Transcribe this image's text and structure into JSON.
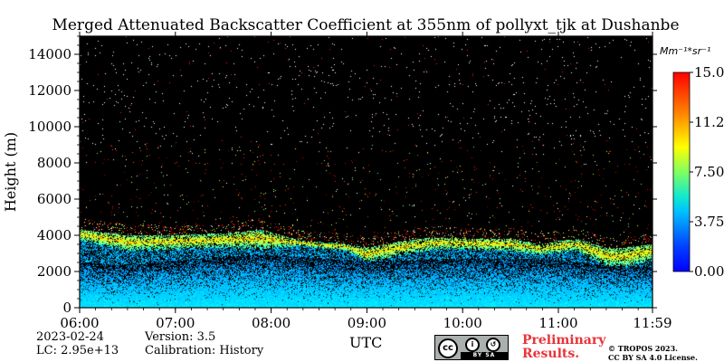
{
  "chart_data": {
    "type": "heatmap",
    "title": "Merged Attenuated Backscatter Coefficient at 355nm of pollyxt_tjk at Dushanbe",
    "xlabel": "UTC",
    "ylabel": "Height (m)",
    "x_ticks": [
      "06:00",
      "07:00",
      "08:00",
      "09:00",
      "10:00",
      "11:00",
      "11:59"
    ],
    "x_range_hours": [
      6.0,
      11.983
    ],
    "y_ticks": [
      0,
      2000,
      4000,
      6000,
      8000,
      10000,
      12000,
      14000
    ],
    "y_range": [
      0,
      15000
    ],
    "colorbar": {
      "unit": "Mm⁻¹*sr⁻¹",
      "ticks": [
        "0.00",
        "3.75",
        "7.50",
        "11.25",
        "15.00"
      ],
      "range": [
        0,
        15.0
      ],
      "colormap": "jet"
    },
    "layers": {
      "boundary_layer_top_m": [
        [
          6.0,
          2500
        ],
        [
          6.5,
          2300
        ],
        [
          7.0,
          2600
        ],
        [
          7.5,
          2800
        ],
        [
          8.0,
          2900
        ],
        [
          8.5,
          2700
        ],
        [
          9.0,
          2500
        ],
        [
          9.5,
          2600
        ],
        [
          10.0,
          2700
        ],
        [
          10.5,
          2700
        ],
        [
          11.0,
          2600
        ],
        [
          11.5,
          2300
        ],
        [
          11.98,
          2200
        ]
      ],
      "aerosol_layer_top_m": [
        [
          6.0,
          4300
        ],
        [
          6.5,
          4000
        ],
        [
          7.0,
          4000
        ],
        [
          7.5,
          4100
        ],
        [
          7.9,
          4300
        ],
        [
          8.3,
          3700
        ],
        [
          8.8,
          3500
        ],
        [
          9.0,
          3300
        ],
        [
          9.3,
          3600
        ],
        [
          9.7,
          3900
        ],
        [
          10.0,
          3800
        ],
        [
          10.5,
          3800
        ],
        [
          10.8,
          3500
        ],
        [
          11.2,
          3800
        ],
        [
          11.5,
          3300
        ],
        [
          11.7,
          3300
        ],
        [
          11.98,
          3500
        ]
      ],
      "aerosol_layer_base_m": [
        [
          6.0,
          3700
        ],
        [
          6.5,
          3100
        ],
        [
          7.0,
          3200
        ],
        [
          7.5,
          3300
        ],
        [
          7.9,
          3200
        ],
        [
          8.3,
          3400
        ],
        [
          8.8,
          3100
        ],
        [
          9.0,
          2500
        ],
        [
          9.3,
          2800
        ],
        [
          9.7,
          3200
        ],
        [
          10.0,
          3200
        ],
        [
          10.5,
          3100
        ],
        [
          10.8,
          2900
        ],
        [
          11.2,
          3100
        ],
        [
          11.5,
          2300
        ],
        [
          11.7,
          2200
        ],
        [
          11.98,
          2600
        ]
      ]
    }
  },
  "footer": {
    "date": "2023-02-24",
    "lc": "LC: 2.95e+13",
    "version": "Version: 3.5",
    "calibration": "Calibration: History",
    "xlabel": "UTC",
    "preliminary_line1": "Preliminary",
    "preliminary_line2": "Results.",
    "copyright_line1": "© TROPOS 2023.",
    "copyright_line2": "CC BY SA 4.0 License.",
    "license_badge_text": "BY SA",
    "license_badge_logo": "cc"
  },
  "colors": {
    "background": "#000000",
    "preliminary": "#e8343a"
  }
}
